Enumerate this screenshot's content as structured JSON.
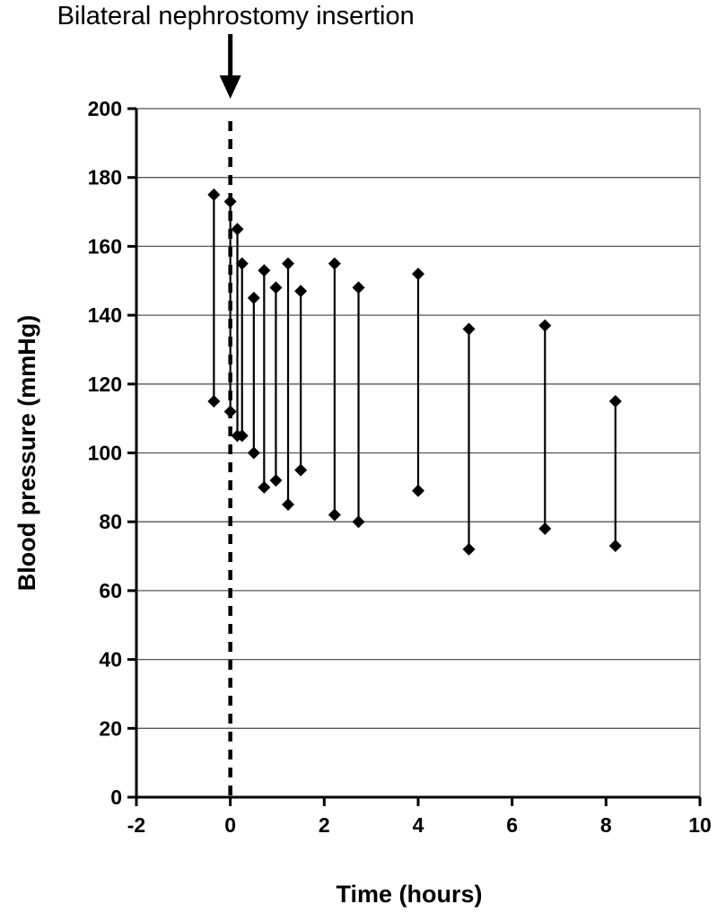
{
  "chart_data": {
    "type": "range",
    "title": "",
    "annotation": "Bilateral nephrostomy insertion",
    "annotation_x": 0,
    "xlabel": "Time (hours)",
    "ylabel": "Blood pressure (mmHg)",
    "xlim": [
      -2,
      10
    ],
    "ylim": [
      0,
      200
    ],
    "x_ticks": [
      "-2",
      "0",
      "2",
      "4",
      "6",
      "8",
      "10"
    ],
    "y_ticks": [
      "0",
      "20",
      "40",
      "60",
      "80",
      "100",
      "120",
      "140",
      "160",
      "180",
      "200"
    ],
    "grid": "horizontal",
    "legend": "none",
    "marker": "diamond",
    "points": [
      {
        "x": -0.35,
        "systolic": 175,
        "diastolic": 115
      },
      {
        "x": 0.0,
        "systolic": 173,
        "diastolic": 112
      },
      {
        "x": 0.15,
        "systolic": 165,
        "diastolic": 105
      },
      {
        "x": 0.25,
        "systolic": 155,
        "diastolic": 105
      },
      {
        "x": 0.5,
        "systolic": 145,
        "diastolic": 100
      },
      {
        "x": 0.72,
        "systolic": 153,
        "diastolic": 90
      },
      {
        "x": 0.97,
        "systolic": 148,
        "diastolic": 92
      },
      {
        "x": 1.23,
        "systolic": 155,
        "diastolic": 85
      },
      {
        "x": 1.5,
        "systolic": 147,
        "diastolic": 95
      },
      {
        "x": 2.22,
        "systolic": 155,
        "diastolic": 82
      },
      {
        "x": 2.73,
        "systolic": 148,
        "diastolic": 80
      },
      {
        "x": 4.0,
        "systolic": 152,
        "diastolic": 89
      },
      {
        "x": 5.08,
        "systolic": 136,
        "diastolic": 72
      },
      {
        "x": 6.7,
        "systolic": 137,
        "diastolic": 78
      },
      {
        "x": 8.2,
        "systolic": 115,
        "diastolic": 73
      }
    ]
  }
}
